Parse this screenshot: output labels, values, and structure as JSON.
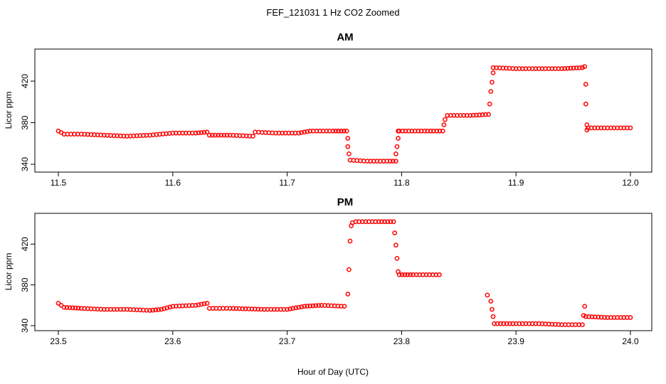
{
  "figure": {
    "title": "FEF_121031  1 Hz CO2 Zoomed",
    "xlabel": "Hour of Day (UTC)"
  },
  "colors": {
    "points": "#ff0000",
    "axes": "#000000"
  },
  "chart_data": [
    {
      "type": "scatter",
      "title": "AM",
      "xlabel": "",
      "ylabel": "Licor ppm",
      "xlim": [
        11.5,
        12.0
      ],
      "ylim": [
        338,
        444
      ],
      "xticks": [
        11.5,
        11.6,
        11.7,
        11.8,
        11.9,
        12.0
      ],
      "xtick_labels": [
        "11.5",
        "11.6",
        "11.7",
        "11.8",
        "11.9",
        "12.0"
      ],
      "yticks": [
        340,
        380,
        420
      ],
      "ytick_labels": [
        "340",
        "380",
        "420"
      ],
      "grid": false,
      "marker": "open-circle",
      "series": [
        {
          "x": [
            11.5,
            11.505,
            11.52,
            11.54,
            11.56,
            11.58,
            11.6,
            11.62,
            11.63,
            11.632,
            11.65,
            11.67,
            11.672,
            11.69,
            11.71,
            11.72,
            11.74,
            11.752,
            11.753,
            11.753,
            11.754,
            11.755,
            11.77,
            11.79,
            11.795,
            11.795,
            11.796,
            11.797,
            11.797,
            11.798,
            11.82,
            11.836,
            11.837,
            11.838,
            11.84,
            11.86,
            11.876,
            11.877,
            11.878,
            11.879,
            11.88,
            11.88,
            11.9,
            11.92,
            11.94,
            11.958,
            11.96,
            11.961,
            11.961,
            11.962,
            11.962,
            11.963,
            11.98,
            12.0
          ],
          "y": [
            372,
            369,
            369,
            368,
            367,
            368,
            370,
            370,
            371,
            368,
            368,
            367,
            371,
            370,
            370,
            372,
            372,
            372,
            365,
            357,
            350,
            344,
            343,
            343,
            343,
            350,
            357,
            365,
            372,
            372,
            372,
            372,
            378,
            383,
            387,
            387,
            388,
            398,
            410,
            419,
            428,
            433,
            432,
            432,
            432,
            433,
            434,
            417,
            398,
            378,
            373,
            375,
            375,
            375
          ]
        }
      ]
    },
    {
      "type": "scatter",
      "title": "PM",
      "xlabel": "Hour of Day (UTC)",
      "ylabel": "Licor ppm",
      "xlim": [
        23.5,
        24.0
      ],
      "ylim": [
        336,
        446
      ],
      "xticks": [
        23.5,
        23.6,
        23.7,
        23.8,
        23.9,
        24.0
      ],
      "xtick_labels": [
        "23.5",
        "23.6",
        "23.7",
        "23.8",
        "23.9",
        "24.0"
      ],
      "yticks": [
        340,
        380,
        420
      ],
      "ytick_labels": [
        "340",
        "380",
        "420"
      ],
      "grid": false,
      "marker": "open-circle",
      "series": [
        {
          "x": [
            23.5,
            23.505,
            23.52,
            23.54,
            23.56,
            23.58,
            23.59,
            23.6,
            23.62,
            23.63,
            23.632,
            23.65,
            23.68,
            23.7,
            23.715,
            23.73,
            23.75,
            23.753,
            23.754,
            23.755,
            23.756,
            23.757,
            23.76,
            23.78,
            23.793,
            23.794,
            23.795,
            23.796,
            23.797,
            23.798,
            23.81,
            23.833,
            23.875,
            23.878,
            23.879,
            23.88,
            23.881,
            23.9,
            23.92,
            23.94,
            23.958,
            23.959,
            23.96,
            23.961,
            23.98,
            24.0
          ],
          "y": [
            362,
            358,
            357,
            356,
            356,
            355,
            356,
            359,
            360,
            362,
            357,
            357,
            356,
            356,
            359,
            360,
            359,
            371,
            395,
            423,
            438,
            441,
            442,
            442,
            442,
            431,
            419,
            406,
            393,
            390,
            390,
            390,
            370,
            364,
            356,
            349,
            342,
            342,
            342,
            341,
            341,
            350,
            359,
            349,
            348,
            348
          ]
        }
      ]
    }
  ]
}
